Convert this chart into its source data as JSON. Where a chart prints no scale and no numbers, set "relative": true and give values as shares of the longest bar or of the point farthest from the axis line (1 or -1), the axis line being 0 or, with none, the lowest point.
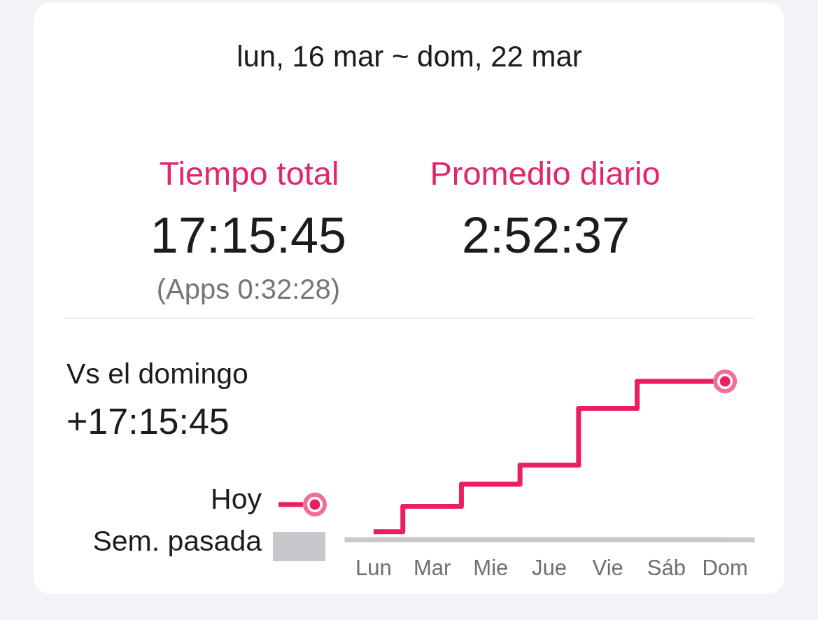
{
  "chart_data": {
    "type": "step",
    "title": "lun, 16 mar ~ dom, 22 mar",
    "annotations": [
      "Tiempo total",
      "17:15:45",
      "(Apps 0:32:28)",
      "Promedio diario",
      "2:52:37",
      "Vs el domingo",
      "+17:15:45"
    ],
    "categories": [
      "Lun",
      "Mar",
      "Mie",
      "Jue",
      "Vie",
      "Sáb",
      "Dom"
    ],
    "relative": true,
    "series": [
      {
        "name": "Hoy",
        "type": "step",
        "color": "#e91e63",
        "values": [
          0.05,
          0.21,
          0.35,
          0.47,
          0.83,
          1,
          1
        ]
      },
      {
        "name": "Sem. pasada",
        "type": "line",
        "color": "#c7c7cc",
        "values": [
          0,
          0,
          0,
          0,
          0,
          0,
          0
        ]
      }
    ],
    "legend": "left"
  }
}
